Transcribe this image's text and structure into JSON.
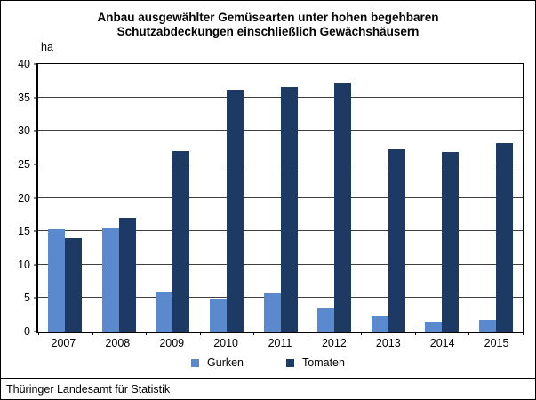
{
  "title": {
    "line1": "Anbau ausgewählter Gemüsearten unter hohen begehbaren",
    "line2": "Schutzabdeckungen einschließlich Gewächshäusern"
  },
  "source": "Thüringer Landesamt für Statistik",
  "colors": {
    "gurken": "#5b89cd",
    "tomaten": "#1c3a63",
    "gridline": "#3f3f3f",
    "axis": "#000000"
  },
  "chart_data": {
    "type": "bar",
    "title": "Anbau ausgewählter Gemüsearten unter hohen begehbaren Schutzabdeckungen einschließlich Gewächshäusern",
    "unit_label": "ha",
    "ylabel": "ha",
    "xlabel": "",
    "categories": [
      "2007",
      "2008",
      "2009",
      "2010",
      "2011",
      "2012",
      "2013",
      "2014",
      "2015"
    ],
    "series": [
      {
        "name": "Gurken",
        "color": "#5b89cd",
        "values": [
          15.3,
          15.6,
          5.9,
          4.9,
          5.7,
          3.5,
          2.2,
          1.4,
          1.7
        ]
      },
      {
        "name": "Tomaten",
        "color": "#1c3a63",
        "values": [
          13.9,
          17.0,
          27.0,
          36.1,
          36.5,
          37.2,
          27.3,
          26.9,
          28.2
        ]
      }
    ],
    "ylim": [
      0,
      40
    ],
    "ytick_step": 5,
    "grid": true,
    "legend_position": "bottom"
  }
}
